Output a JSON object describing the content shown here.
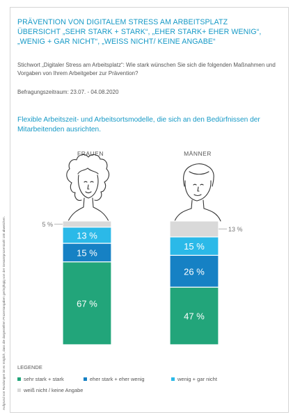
{
  "title": {
    "line1": "PRÄVENTION VON DIGITALEM STRESS AM ARBEITSPLATZ",
    "line2": "ÜBERSICHT „SEHR STARK + STARK“, „EHER STARK+ EHER WENIG“,",
    "line3": "„WENIG + GAR NICHT“, „WEISS NICHT/ KEINE ANGABE“"
  },
  "question": "Stichwort „Digitaler Stress am Arbeitsplatz“: Wie stark wünschen Sie sich die folgenden Maßnahmen und Vorgaben von Ihrem Arbeitgeber zur Prävention?",
  "period": "Befragungszeitraum: 23.07. - 04.08.2020",
  "subtitle": "Flexible Arbeitszeit- und Arbeitsortsmodelle, die sich an den Bedürfnissen der Mitarbeitenden ausrichten.",
  "side_note": "Aufgrund von Rundungen ist es möglich, dass die dargestellten Prozentangaben geringfügig von der Gesamtprozentzahl 100 abweichen.",
  "legend": {
    "title": "LEGENDE",
    "items": [
      {
        "label": "sehr stark + stark",
        "color": "#22a57a"
      },
      {
        "label": "eher stark + eher wenig",
        "color": "#1681c4"
      },
      {
        "label": "wenig + gar nicht",
        "color": "#2bb9e8"
      },
      {
        "label": "weiß nicht / keine Angabe",
        "color": "#d9d9d9"
      }
    ]
  },
  "chart_data": {
    "type": "bar",
    "stacked": true,
    "categories": [
      "FRAUEN",
      "MÄNNER"
    ],
    "series": [
      {
        "name": "sehr stark + stark",
        "color": "#22a57a",
        "values": [
          67,
          47
        ],
        "labels": [
          "67 %",
          "47 %"
        ]
      },
      {
        "name": "eher stark + eher wenig",
        "color": "#1681c4",
        "values": [
          15,
          26
        ],
        "labels": [
          "15 %",
          "26 %"
        ]
      },
      {
        "name": "wenig + gar nicht",
        "color": "#2bb9e8",
        "values": [
          13,
          15
        ],
        "labels": [
          "13 %",
          "15 %"
        ]
      },
      {
        "name": "weiß nicht / keine Angabe",
        "color": "#d9d9d9",
        "values": [
          5,
          13
        ],
        "labels": [
          "5 %",
          "13 %"
        ]
      }
    ]
  }
}
